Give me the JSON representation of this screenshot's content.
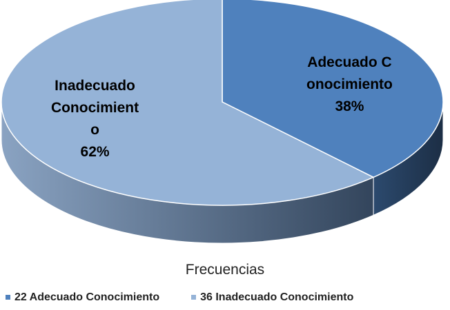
{
  "chart_data": {
    "type": "pie3d",
    "title": "Frecuencias",
    "categories": [
      "22 Adecuado Conocimiento",
      "36 Inadecuado Conocimiento"
    ],
    "labels": [
      "Adecuado Conocimiento",
      "Inadecuado Conocimiento"
    ],
    "values": [
      38,
      62
    ],
    "value_labels": [
      "38%",
      "62%"
    ],
    "colors": [
      "#4f81bd",
      "#95b3d7"
    ],
    "legend": "bottom"
  }
}
